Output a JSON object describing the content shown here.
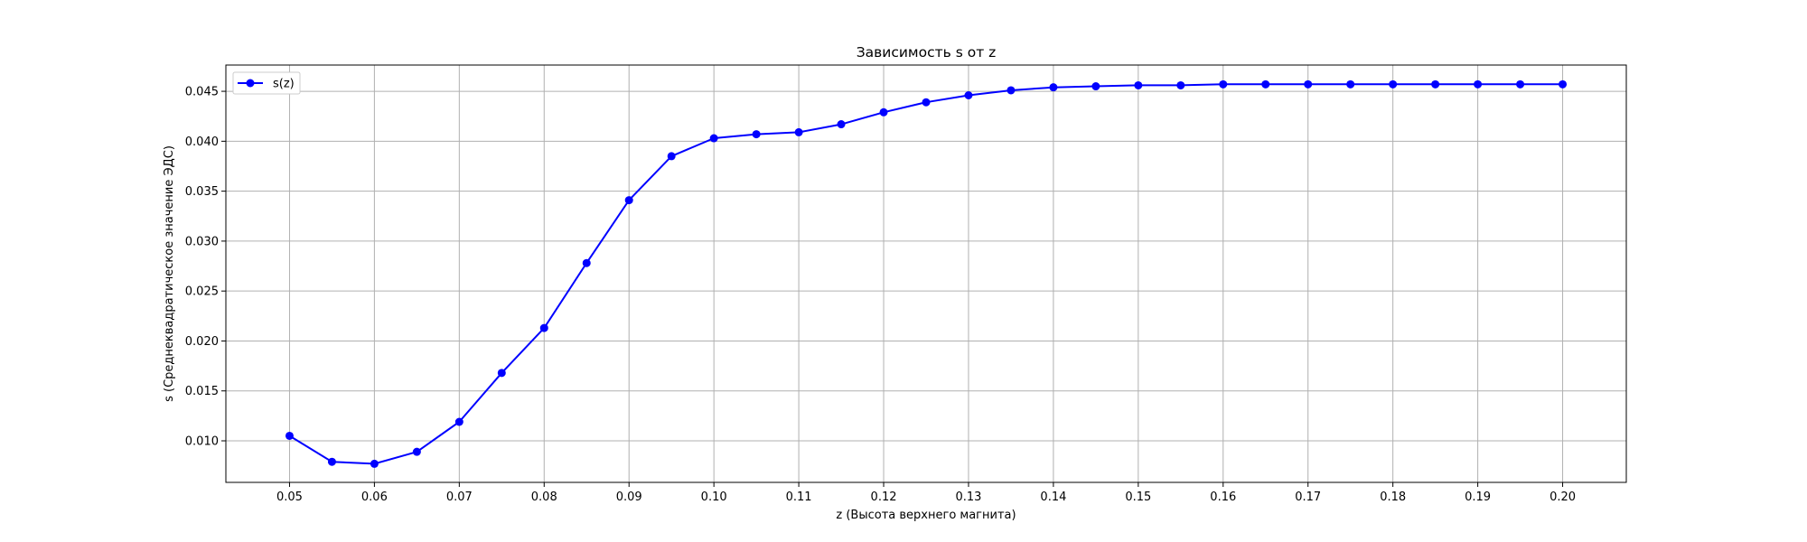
{
  "chart_data": {
    "type": "line",
    "title": "Зависимость s от z",
    "xlabel": "z (Высота верхнего магнита)",
    "ylabel": "s (Среднеквадратическое значение ЭДС)",
    "xlim": [
      0.0425,
      0.2075
    ],
    "ylim": [
      0.00584,
      0.04763
    ],
    "grid": true,
    "legend_position": "top-left",
    "x_ticks": [
      "0.05",
      "0.06",
      "0.07",
      "0.08",
      "0.09",
      "0.10",
      "0.11",
      "0.12",
      "0.13",
      "0.14",
      "0.15",
      "0.16",
      "0.17",
      "0.18",
      "0.19",
      "0.20"
    ],
    "y_ticks": [
      "0.010",
      "0.015",
      "0.020",
      "0.025",
      "0.030",
      "0.035",
      "0.040",
      "0.045"
    ],
    "series": [
      {
        "name": "s(z)",
        "color": "#0000ff",
        "marker": "circle",
        "x": [
          0.05,
          0.055,
          0.06,
          0.065,
          0.07,
          0.075,
          0.08,
          0.085,
          0.09,
          0.095,
          0.1,
          0.105,
          0.11,
          0.115,
          0.12,
          0.125,
          0.13,
          0.135,
          0.14,
          0.145,
          0.15,
          0.155,
          0.16,
          0.165,
          0.17,
          0.175,
          0.18,
          0.185,
          0.19,
          0.195,
          0.2
        ],
        "y": [
          0.0105,
          0.0079,
          0.0077,
          0.0089,
          0.0119,
          0.0168,
          0.0213,
          0.0278,
          0.0341,
          0.0385,
          0.0403,
          0.0407,
          0.0409,
          0.0417,
          0.0429,
          0.0439,
          0.0446,
          0.0451,
          0.0454,
          0.0455,
          0.0456,
          0.0456,
          0.0457,
          0.0457,
          0.0457,
          0.0457,
          0.0457,
          0.0457,
          0.0457,
          0.0457,
          0.0457
        ]
      }
    ]
  }
}
